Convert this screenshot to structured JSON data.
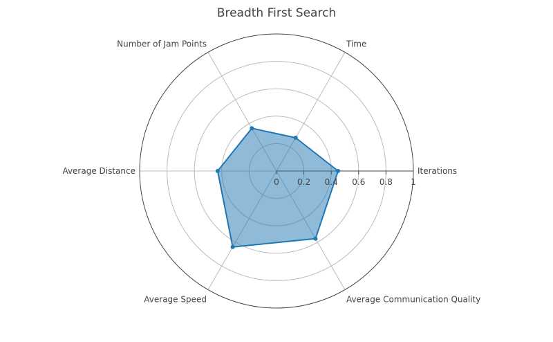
{
  "chart_data": {
    "type": "radar",
    "title": "Breadth First Search",
    "categories": [
      "Iterations",
      "Time",
      "Number of Jam Points",
      "Average Distance",
      "Average Speed",
      "Average Communication Quality"
    ],
    "series": [
      {
        "values": [
          0.45,
          0.28,
          0.36,
          0.43,
          0.64,
          0.57
        ]
      }
    ],
    "radial_range": [
      0,
      1
    ],
    "radial_ticks": [
      0,
      0.2,
      0.4,
      0.6,
      0.8,
      1
    ],
    "radial_tick_labels": [
      "0",
      "0.2",
      "0.4",
      "0.6",
      "0.8",
      "1"
    ],
    "grid": true,
    "colors": {
      "line": "#1f77b4",
      "fill": "#1f77b4",
      "grid": "#bbbbbb",
      "outer": "#444444"
    }
  }
}
